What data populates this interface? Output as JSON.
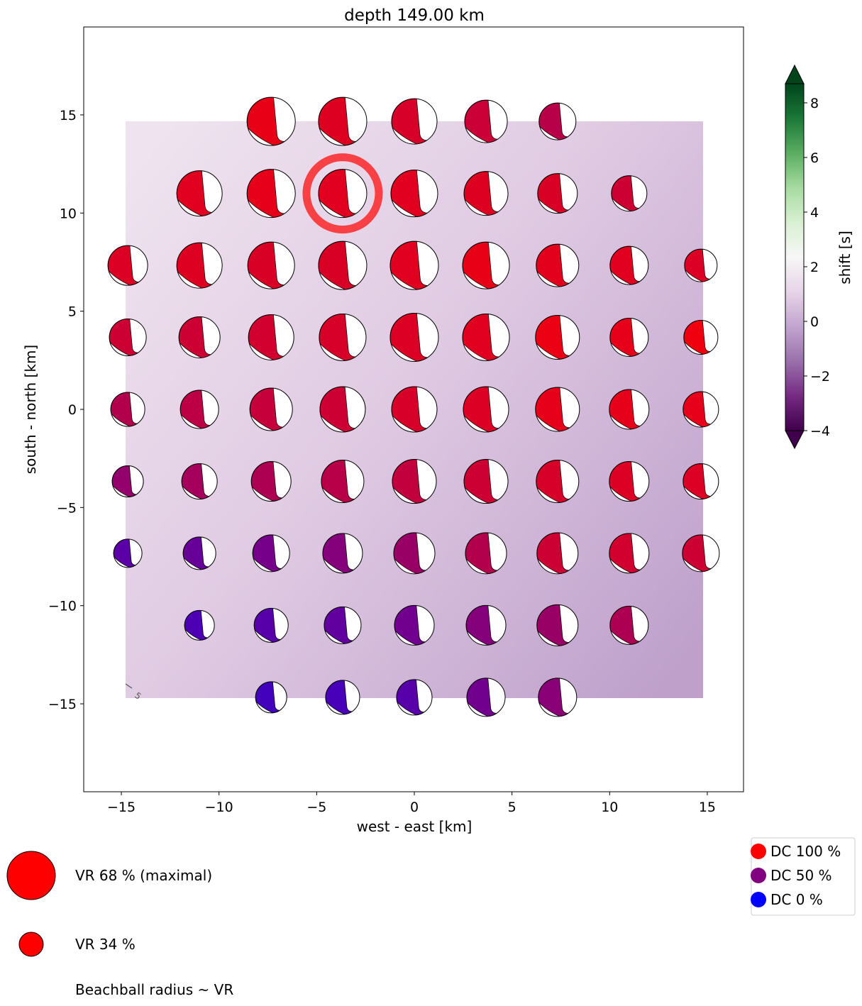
{
  "chart_data": {
    "type": "scatter",
    "title": "depth 149.00 km",
    "xlabel": "west - east [km]",
    "ylabel": "south - north [km]",
    "xlim": [
      -16.9,
      16.9
    ],
    "ylim": [
      -19.5,
      19.5
    ],
    "xticks": [
      -15,
      -10,
      -5,
      0,
      5,
      10,
      15
    ],
    "yticks": [
      -15,
      -10,
      -5,
      0,
      5,
      10,
      15
    ],
    "xtick_labels": [
      "−15",
      "−10",
      "−5",
      "0",
      "5",
      "10",
      "15"
    ],
    "ytick_labels": [
      "−15",
      "−10",
      "−5",
      "0",
      "5",
      "10",
      "15"
    ],
    "grid": false,
    "background_field": {
      "name": "shift",
      "extent": [
        -14.67,
        14.67,
        -14.67,
        14.67
      ],
      "contour_label": "5"
    },
    "best_solution": {
      "x": -3.67,
      "y": 11,
      "color": "#f84045"
    },
    "beachballs": [
      {
        "y": 14.67,
        "xs": [
          -7.33,
          -3.67,
          0,
          3.67,
          7.33
        ],
        "vr": [
          68,
          68,
          64,
          60,
          52
        ],
        "dc": [
          91,
          87,
          84,
          79,
          72
        ]
      },
      {
        "y": 11,
        "xs": [
          -11,
          -7.33,
          -3.67,
          0,
          3.67,
          7.33,
          11
        ],
        "vr": [
          64,
          68,
          68,
          66,
          62,
          56,
          50
        ],
        "dc": [
          88,
          90,
          88,
          88,
          87,
          85,
          80
        ]
      },
      {
        "y": 7.33,
        "xs": [
          -14.67,
          -11,
          -7.33,
          -3.67,
          0,
          3.67,
          7.33,
          11,
          14.67
        ],
        "vr": [
          56,
          64,
          66,
          68,
          68,
          66,
          60,
          54,
          46
        ],
        "dc": [
          86,
          87,
          85,
          85,
          88,
          91,
          89,
          88,
          86
        ]
      },
      {
        "y": 3.67,
        "xs": [
          -14.67,
          -11,
          -7.33,
          -3.67,
          0,
          3.67,
          7.33,
          11,
          14.67
        ],
        "vr": [
          52,
          58,
          64,
          66,
          68,
          66,
          62,
          54,
          48
        ],
        "dc": [
          80,
          80,
          82,
          84,
          86,
          88,
          92,
          90,
          94
        ]
      },
      {
        "y": 0,
        "xs": [
          -14.67,
          -11,
          -7.33,
          -3.67,
          0,
          3.67,
          7.33,
          11,
          14.67
        ],
        "vr": [
          48,
          54,
          60,
          64,
          64,
          64,
          62,
          56,
          50
        ],
        "dc": [
          70,
          74,
          77,
          80,
          84,
          86,
          90,
          90,
          90
        ]
      },
      {
        "y": -3.67,
        "xs": [
          -14.67,
          -11,
          -7.33,
          -3.67,
          0,
          3.67,
          7.33,
          11,
          14.67
        ],
        "vr": [
          44,
          50,
          56,
          60,
          62,
          62,
          60,
          56,
          50
        ],
        "dc": [
          58,
          64,
          68,
          72,
          76,
          80,
          84,
          86,
          86
        ]
      },
      {
        "y": -7.33,
        "xs": [
          -14.67,
          -11,
          -7.33,
          -3.67,
          0,
          3.67,
          7.33,
          11,
          14.67
        ],
        "vr": [
          40,
          46,
          52,
          56,
          58,
          58,
          58,
          56,
          52
        ],
        "dc": [
          35,
          40,
          46,
          52,
          60,
          70,
          80,
          82,
          80
        ]
      },
      {
        "y": -11,
        "xs": [
          -11,
          -7.33,
          -3.67,
          0,
          3.67,
          7.33,
          11
        ],
        "vr": [
          42,
          48,
          52,
          56,
          56,
          58,
          54
        ],
        "dc": [
          30,
          34,
          38,
          44,
          52,
          60,
          68
        ]
      },
      {
        "y": -14.67,
        "xs": [
          -7.33,
          -3.67,
          0,
          3.67,
          7.33
        ],
        "vr": [
          44,
          48,
          50,
          54,
          54
        ],
        "dc": [
          26,
          28,
          34,
          44,
          54
        ]
      }
    ],
    "colorbar": {
      "label": "shift [s]",
      "range": [
        -4,
        8.7
      ],
      "ticks": [
        8,
        6,
        4,
        2,
        0,
        -2,
        -4
      ],
      "tick_labels": [
        "8",
        "6",
        "4",
        "2",
        "0",
        "−2",
        "−4"
      ],
      "colormap": [
        "#40004b",
        "#762a83",
        "#9970ab",
        "#c2a5cf",
        "#e7d4e8",
        "#f7f7f7",
        "#d9f0d3",
        "#a6dba0",
        "#5aae61",
        "#1b7837",
        "#00441b"
      ]
    },
    "size_legend": [
      {
        "label": "VR 68 % (maximal)",
        "vr": 68
      },
      {
        "label": "VR 34 %",
        "vr": 34
      }
    ],
    "size_legend_note": "Beachball radius ~ VR",
    "dc_legend": [
      {
        "label": "DC 100 %",
        "color": "#ff0000"
      },
      {
        "label": "DC 50 %",
        "color": "#800080"
      },
      {
        "label": "DC 0 %",
        "color": "#0000ff"
      }
    ]
  }
}
